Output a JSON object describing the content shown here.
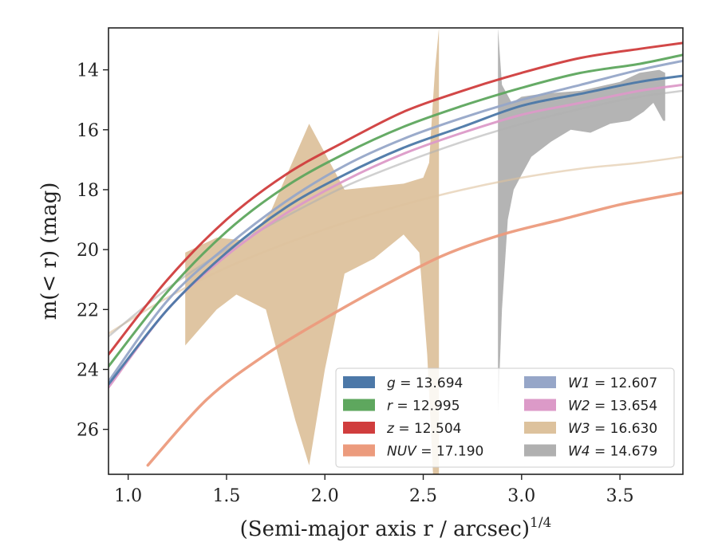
{
  "chart_data": {
    "type": "line",
    "xlabel": "(Semi-major axis r / arcsec)",
    "xlabel_exp": "1/4",
    "ylabel": "m(< r) (mag)",
    "xlim": [
      0.9,
      3.82
    ],
    "ylim": [
      27.5,
      12.6
    ],
    "y_inverted": true,
    "xticks": [
      1.0,
      1.5,
      2.0,
      2.5,
      3.0,
      3.5
    ],
    "xtick_labels": [
      "1.0",
      "1.5",
      "2.0",
      "2.5",
      "3.0",
      "3.5"
    ],
    "yticks": [
      14,
      16,
      18,
      20,
      22,
      24,
      26
    ],
    "ytick_labels": [
      "14",
      "16",
      "18",
      "20",
      "22",
      "24",
      "26"
    ],
    "grid": false,
    "legend_position": "bottom-right",
    "legend": [
      {
        "band": "g",
        "text": " = 13.694",
        "color": "#4c78a8"
      },
      {
        "band": "W1",
        "text": " = 12.607",
        "color": "#96a6c8"
      },
      {
        "band": "r",
        "text": " = 12.995",
        "color": "#5ea75e"
      },
      {
        "band": "W2",
        "text": " = 13.654",
        "color": "#dc9ac8"
      },
      {
        "band": "z",
        "text": " = 12.504",
        "color": "#d03d3d"
      },
      {
        "band": "W3",
        "text": " = 16.630",
        "color": "#ddc29d"
      },
      {
        "band": "NUV",
        "text": " = 17.190",
        "color": "#ec9b7d"
      },
      {
        "band": "W4",
        "text": " = 14.679",
        "color": "#b0b0b0"
      }
    ],
    "series": [
      {
        "name": "g",
        "color": "#4c78a8",
        "x": [
          0.9,
          1.2,
          1.5,
          1.8,
          2.1,
          2.4,
          2.7,
          3.0,
          3.3,
          3.6,
          3.82
        ],
        "y": [
          24.5,
          22.0,
          20.1,
          18.6,
          17.5,
          16.6,
          15.9,
          15.2,
          14.8,
          14.4,
          14.2
        ]
      },
      {
        "name": "r",
        "color": "#5ea75e",
        "x": [
          0.9,
          1.2,
          1.5,
          1.8,
          2.1,
          2.4,
          2.7,
          3.0,
          3.3,
          3.6,
          3.82
        ],
        "y": [
          23.9,
          21.4,
          19.4,
          17.9,
          16.8,
          15.9,
          15.2,
          14.6,
          14.1,
          13.8,
          13.5
        ]
      },
      {
        "name": "z",
        "color": "#d03d3d",
        "x": [
          0.9,
          1.2,
          1.5,
          1.8,
          2.1,
          2.4,
          2.7,
          3.0,
          3.3,
          3.6,
          3.82
        ],
        "y": [
          23.5,
          21.0,
          19.0,
          17.5,
          16.4,
          15.4,
          14.7,
          14.1,
          13.6,
          13.3,
          13.1
        ]
      },
      {
        "name": "W1",
        "color": "#96a6c8",
        "x": [
          0.9,
          1.2,
          1.5,
          1.8,
          2.1,
          2.4,
          2.7,
          3.0,
          3.3,
          3.6,
          3.82
        ],
        "y": [
          24.4,
          21.7,
          19.9,
          18.4,
          17.2,
          16.3,
          15.6,
          15.0,
          14.5,
          14.0,
          13.7
        ]
      },
      {
        "name": "W2",
        "color": "#dc9ac8",
        "x": [
          0.9,
          1.2,
          1.5,
          1.8,
          2.1,
          2.4,
          2.7,
          3.0,
          3.3,
          3.6,
          3.82
        ],
        "y": [
          24.6,
          22.0,
          20.2,
          18.8,
          17.7,
          16.8,
          16.1,
          15.5,
          15.1,
          14.7,
          14.5
        ]
      },
      {
        "name": "W3",
        "color": "#ddc29d",
        "x": [
          0.9,
          1.2,
          1.5,
          1.8,
          2.1,
          2.4,
          2.7,
          3.0,
          3.3,
          3.6,
          3.82
        ],
        "y": [
          22.8,
          21.6,
          20.6,
          19.8,
          19.1,
          18.5,
          18.0,
          17.6,
          17.3,
          17.1,
          16.9
        ]
      },
      {
        "name": "W4",
        "color": "#b0b0b0",
        "x": [
          0.9,
          1.2,
          1.5,
          1.8,
          2.1,
          2.4,
          2.7,
          3.0,
          3.3,
          3.6,
          3.82
        ],
        "y": [
          22.9,
          21.3,
          20.0,
          18.9,
          17.9,
          17.1,
          16.4,
          15.8,
          15.3,
          14.9,
          14.7
        ]
      },
      {
        "name": "NUV",
        "color": "#ec9b7d",
        "x": [
          1.1,
          1.4,
          1.7,
          2.0,
          2.3,
          2.6,
          2.9,
          3.2,
          3.5,
          3.82
        ],
        "y": [
          27.2,
          25.0,
          23.5,
          22.3,
          21.2,
          20.2,
          19.5,
          19.0,
          18.5,
          18.1
        ]
      }
    ],
    "bands": [
      {
        "name": "W3",
        "color": "#ddc29d",
        "upper": {
          "x": [
            1.29,
            1.45,
            1.6,
            1.72,
            1.92,
            2.1,
            2.25,
            2.4,
            2.5,
            2.53,
            2.55,
            2.56,
            2.58
          ],
          "y": [
            20.1,
            19.6,
            19.7,
            18.8,
            15.8,
            18.0,
            17.9,
            17.8,
            17.6,
            17.1,
            15.0,
            14.0,
            12.6
          ]
        },
        "lower": {
          "x": [
            1.29,
            1.45,
            1.55,
            1.7,
            1.85,
            1.92,
            2.0,
            2.1,
            2.25,
            2.4,
            2.48,
            2.52,
            2.55,
            2.58
          ],
          "y": [
            23.2,
            22.0,
            21.5,
            22.0,
            25.7,
            27.2,
            24.0,
            20.8,
            20.3,
            19.5,
            20.1,
            23.5,
            27.5,
            27.5
          ]
        }
      },
      {
        "name": "W4",
        "color": "#b0b0b0",
        "upper": {
          "x": [
            2.88,
            2.9,
            2.95,
            3.0,
            3.1,
            3.3,
            3.5,
            3.6,
            3.7,
            3.73
          ],
          "y": [
            12.6,
            14.5,
            15.1,
            14.9,
            14.8,
            14.7,
            14.4,
            14.1,
            14.0,
            14.1
          ]
        },
        "lower": {
          "x": [
            2.88,
            2.9,
            2.93,
            2.96,
            3.0,
            3.05,
            3.15,
            3.25,
            3.35,
            3.45,
            3.55,
            3.62,
            3.67,
            3.72,
            3.73
          ],
          "y": [
            25.5,
            22.0,
            19.0,
            18.0,
            17.5,
            16.9,
            16.4,
            16.0,
            16.1,
            15.8,
            15.7,
            15.4,
            15.1,
            15.7,
            15.7
          ]
        }
      }
    ]
  }
}
